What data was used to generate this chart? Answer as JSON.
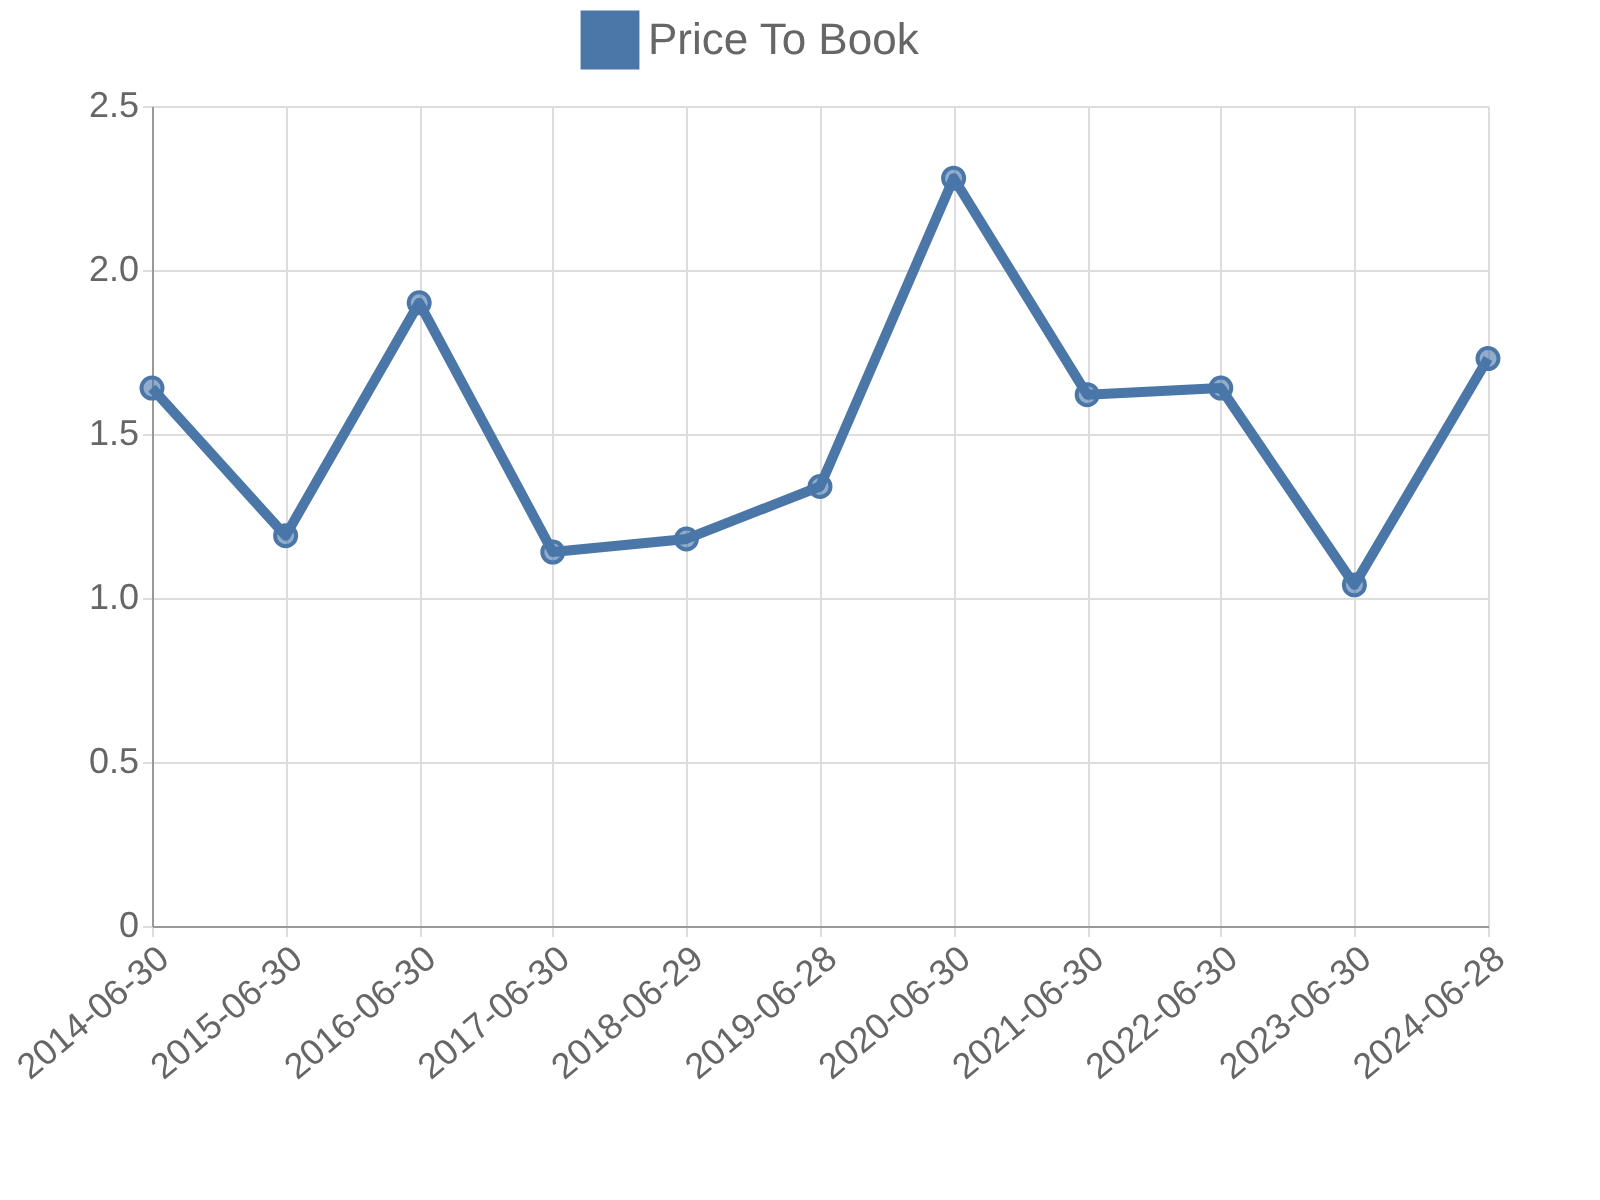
{
  "chart_data": {
    "type": "line",
    "categories": [
      "2014-06-30",
      "2015-06-30",
      "2016-06-30",
      "2017-06-30",
      "2018-06-29",
      "2019-06-28",
      "2020-06-30",
      "2021-06-30",
      "2022-06-30",
      "2023-06-30",
      "2024-06-28"
    ],
    "series": [
      {
        "name": "Price To Book",
        "color": "#4a76a8",
        "values": [
          1.64,
          1.19,
          1.9,
          1.14,
          1.18,
          1.34,
          2.28,
          1.62,
          1.64,
          1.04,
          1.73
        ]
      }
    ],
    "ylim": [
      0,
      2.5
    ],
    "yticks": [
      0,
      0.5,
      {
        "value": 1,
        "label": "1.0"
      },
      1.5,
      {
        "value": 2,
        "label": "2.0"
      },
      2.5
    ],
    "grid": true,
    "legend": "top",
    "marker": "circle",
    "line_style": "solid"
  }
}
